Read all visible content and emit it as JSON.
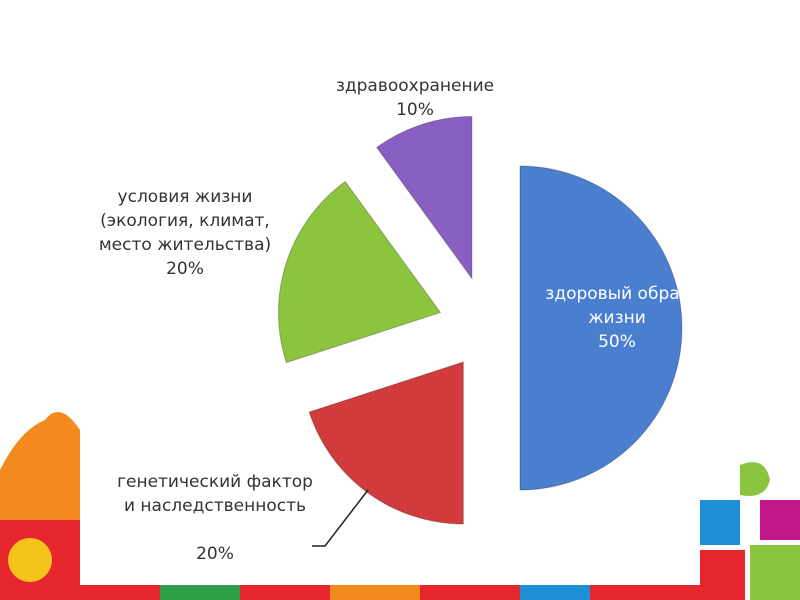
{
  "chart_data": {
    "type": "pie",
    "categories": [
      "здоровый образ жизни",
      "генетический фактор и наследственность",
      "условия жизни (экология, климат, место жительства)",
      "здравоохранение"
    ],
    "values": [
      50,
      20,
      20,
      10
    ],
    "value_labels": [
      "50%",
      "20%",
      "20%",
      "10%"
    ],
    "colors": [
      "#4a7fd0",
      "#d13b3b",
      "#8cc43e",
      "#8a5fc2"
    ]
  }
}
